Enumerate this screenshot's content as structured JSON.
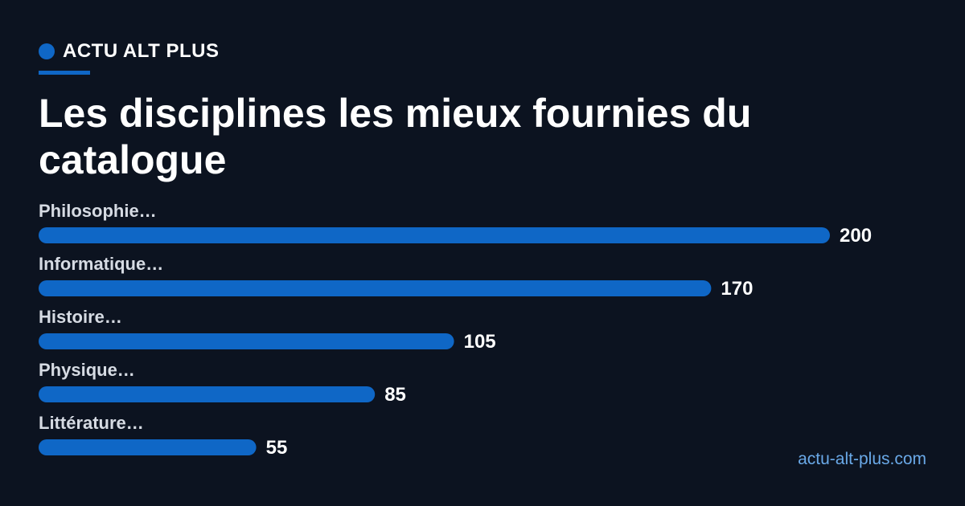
{
  "brand": {
    "name": "ACTU ALT PLUS"
  },
  "title": "Les disciplines les mieux fournies du catalogue",
  "footer": {
    "url": "actu-alt-plus.com"
  },
  "colors": {
    "background": "#0c1320",
    "accent": "#0f67c6",
    "link": "#6aa9e8"
  },
  "chart_data": {
    "type": "bar",
    "orientation": "horizontal",
    "categories": [
      "Philosophie…",
      "Informatique…",
      "Histoire…",
      "Physique…",
      "Littérature…"
    ],
    "values": [
      200,
      170,
      105,
      85,
      55
    ],
    "data_labels": [
      "200",
      "170",
      "105",
      "85",
      "55"
    ],
    "xlim": [
      0,
      200
    ],
    "grid": false,
    "legend": "none",
    "bar_color": "#0f67c6"
  }
}
